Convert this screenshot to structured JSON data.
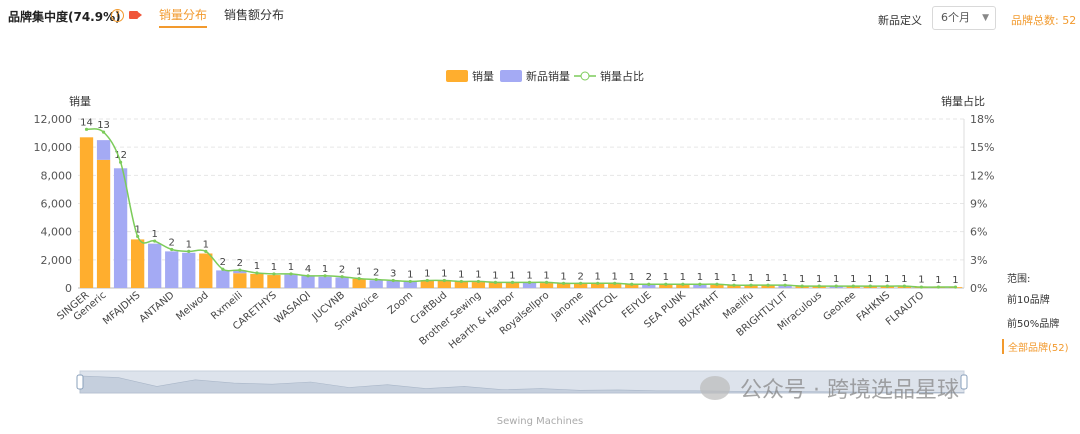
{
  "header": {
    "title": "品牌集中度(74.9%)",
    "tabs": [
      "销量分布",
      "销售额分布"
    ],
    "new_product_label": "新品定义",
    "new_product_select": "6个月",
    "brand_count": "品牌总数: 52"
  },
  "range": {
    "label": "范围:",
    "options": [
      "前10品牌",
      "前50%品牌",
      "全部品牌(52)"
    ],
    "active": 2
  },
  "x_caption": "Sewing Machines",
  "watermark": "公众号 · 跨境选品星球",
  "colors": {
    "sales": "#ffae2e",
    "new_sales": "#a4aaf4",
    "ratio": "#7ccc5a",
    "accent": "#f29a2e"
  },
  "chart_data": {
    "type": "bar",
    "legend": [
      "销量",
      "新品销量",
      "销量占比"
    ],
    "legend_position": "top-center",
    "ylabel_left": "销量",
    "ylabel_right": "销量占比",
    "ylim_left": [
      0,
      12000
    ],
    "ylim_right": [
      0,
      18
    ],
    "yticks_left": [
      "0",
      "2,000",
      "4,000",
      "6,000",
      "8,000",
      "10,000",
      "12,000"
    ],
    "yticks_right": [
      "0%",
      "3%",
      "6%",
      "9%",
      "12%",
      "15%",
      "18%"
    ],
    "grid": true,
    "categories": [
      "SINGER",
      "Generic",
      "",
      "MFAJDHS",
      "",
      "ANTAND",
      "",
      "Melwod",
      "",
      "Rxmeili",
      "",
      "CARETHYS",
      "",
      "WASAIQI",
      "",
      "JUCVNB",
      "",
      "SnowVoice",
      "",
      "Zoom",
      "",
      "CraftBud",
      "",
      "Brother Sewing",
      "",
      "Hearth & Harbor",
      "",
      "Royalsellpro",
      "",
      "Janome",
      "",
      "HJWTCQL",
      "",
      "FEIYUE",
      "",
      "SEA PUNK",
      "",
      "BUXFMHT",
      "",
      "Maeilfu",
      "",
      "BRIGHTLYLIT",
      "",
      "Miraculous",
      "",
      "Geohee",
      "",
      "FAHKNS",
      "",
      "FLRAUTO",
      "",
      ""
    ],
    "series": [
      {
        "name": "销量",
        "values": [
          10700,
          9100,
          0,
          3450,
          0,
          0,
          0,
          2450,
          0,
          1050,
          1000,
          920,
          0,
          0,
          0,
          0,
          650,
          0,
          0,
          0,
          520,
          500,
          470,
          420,
          400,
          380,
          0,
          350,
          330,
          320,
          300,
          300,
          280,
          0,
          260,
          250,
          0,
          230,
          220,
          200,
          180,
          0,
          150,
          140,
          0,
          130,
          120,
          110,
          100,
          90,
          80,
          60
        ]
      },
      {
        "name": "新品销量",
        "values": [
          0,
          1400,
          8500,
          0,
          3150,
          2600,
          2500,
          0,
          1250,
          200,
          0,
          0,
          950,
          850,
          800,
          750,
          0,
          550,
          500,
          450,
          0,
          0,
          0,
          0,
          0,
          0,
          380,
          0,
          0,
          0,
          0,
          0,
          0,
          280,
          0,
          0,
          250,
          0,
          0,
          0,
          0,
          170,
          0,
          0,
          140,
          0,
          0,
          0,
          0,
          0,
          0,
          0
        ]
      },
      {
        "name": "销量占比",
        "values": [
          16.9,
          16.6,
          13.4,
          5.5,
          5.0,
          4.1,
          3.9,
          3.9,
          2.0,
          1.9,
          1.6,
          1.5,
          1.5,
          1.3,
          1.3,
          1.2,
          1.0,
          0.9,
          0.8,
          0.7,
          0.8,
          0.8,
          0.7,
          0.7,
          0.6,
          0.6,
          0.6,
          0.6,
          0.5,
          0.5,
          0.5,
          0.5,
          0.4,
          0.4,
          0.4,
          0.4,
          0.4,
          0.4,
          0.3,
          0.3,
          0.3,
          0.3,
          0.2,
          0.2,
          0.2,
          0.2,
          0.2,
          0.2,
          0.2,
          0.1,
          0.1,
          0.1
        ]
      }
    ],
    "bar_labels": [
      "14",
      "13",
      "12",
      "1",
      "1",
      "2",
      "1",
      "1",
      "2",
      "2",
      "1",
      "1",
      "1",
      "4",
      "1",
      "2",
      "1",
      "2",
      "3",
      "1",
      "1",
      "1",
      "1",
      "1",
      "1",
      "1",
      "1",
      "1",
      "1",
      "2",
      "1",
      "1",
      "1",
      "2",
      "1",
      "1",
      "1",
      "1",
      "1",
      "1",
      "1",
      "1",
      "1",
      "1",
      "1",
      "1",
      "1",
      "1",
      "1",
      "1",
      "1",
      "1"
    ]
  }
}
